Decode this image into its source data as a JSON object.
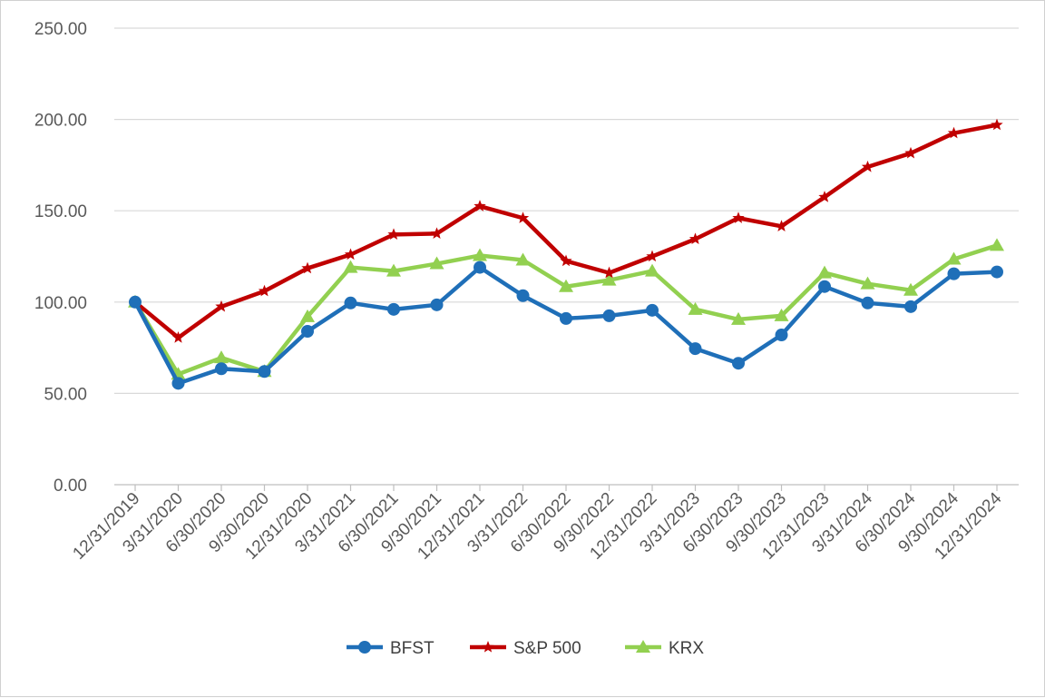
{
  "chart_data": {
    "type": "line",
    "title": "",
    "xlabel": "",
    "ylabel": "",
    "ylim": [
      0,
      250
    ],
    "yticks": [
      "0.00",
      "50.00",
      "100.00",
      "150.00",
      "200.00",
      "250.00"
    ],
    "ytick_values": [
      0,
      50,
      100,
      150,
      200,
      250
    ],
    "grid": true,
    "legend_position": "bottom",
    "categories": [
      "12/31/2019",
      "3/31/2020",
      "6/30/2020",
      "9/30/2020",
      "12/31/2020",
      "3/31/2021",
      "6/30/2021",
      "9/30/2021",
      "12/31/2021",
      "3/31/2022",
      "6/30/2022",
      "9/30/2022",
      "12/31/2022",
      "3/31/2023",
      "6/30/2023",
      "9/30/2023",
      "12/31/2023",
      "3/31/2024",
      "6/30/2024",
      "9/30/2024",
      "12/31/2024"
    ],
    "series": [
      {
        "name": "BFST",
        "color": "#1f6fb8",
        "marker": "circle",
        "values": [
          100.0,
          55.5,
          63.5,
          62.0,
          84.0,
          99.5,
          96.0,
          98.5,
          119.0,
          103.5,
          91.0,
          92.5,
          95.5,
          74.5,
          66.5,
          82.0,
          108.5,
          99.5,
          97.5,
          115.5,
          116.5
        ]
      },
      {
        "name": "S&P 500",
        "color": "#c00000",
        "marker": "star",
        "values": [
          100.0,
          80.5,
          97.5,
          106.0,
          118.5,
          126.0,
          137.0,
          137.5,
          152.5,
          146.0,
          122.5,
          116.0,
          125.0,
          134.5,
          146.0,
          141.5,
          157.5,
          174.0,
          181.5,
          192.5,
          197.0
        ]
      },
      {
        "name": "KRX",
        "color": "#92d050",
        "marker": "triangle",
        "values": [
          100.0,
          60.5,
          69.5,
          62.0,
          92.0,
          119.0,
          117.0,
          121.0,
          125.5,
          123.0,
          108.5,
          112.0,
          117.0,
          96.0,
          90.5,
          92.5,
          116.0,
          110.0,
          106.5,
          123.5,
          131.0
        ]
      }
    ]
  }
}
